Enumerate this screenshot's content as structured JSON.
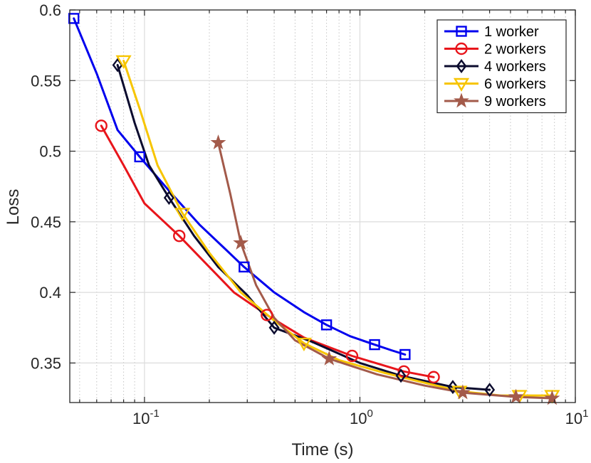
{
  "chart_data": {
    "type": "line",
    "xlabel": "Time (s)",
    "ylabel": "Loss",
    "xscale": "log",
    "xlim": [
      0.045,
      10
    ],
    "ylim": [
      0.322,
      0.6
    ],
    "xticks": [
      {
        "value": 0.1,
        "base": "10",
        "exp": "-1"
      },
      {
        "value": 1,
        "base": "10",
        "exp": "0"
      },
      {
        "value": 10,
        "base": "10",
        "exp": "1"
      }
    ],
    "yticks": [
      {
        "value": 0.35,
        "label": "0.35"
      },
      {
        "value": 0.4,
        "label": "0.4"
      },
      {
        "value": 0.45,
        "label": "0.45"
      },
      {
        "value": 0.5,
        "label": "0.5"
      },
      {
        "value": 0.55,
        "label": "0.55"
      },
      {
        "value": 0.6,
        "label": "0.6"
      }
    ],
    "grid": true,
    "legend": "top-right",
    "series": [
      {
        "name": "1 worker",
        "color": "#0000ee",
        "marker": "square",
        "curve": [
          [
            0.047,
            0.594
          ],
          [
            0.06,
            0.555
          ],
          [
            0.075,
            0.515
          ],
          [
            0.095,
            0.496
          ],
          [
            0.13,
            0.472
          ],
          [
            0.18,
            0.448
          ],
          [
            0.24,
            0.43
          ],
          [
            0.29,
            0.418
          ],
          [
            0.4,
            0.4
          ],
          [
            0.55,
            0.386
          ],
          [
            0.7,
            0.377
          ],
          [
            0.9,
            0.369
          ],
          [
            1.17,
            0.363
          ],
          [
            1.4,
            0.359
          ],
          [
            1.62,
            0.356
          ]
        ],
        "markers": [
          [
            0.047,
            0.594
          ],
          [
            0.095,
            0.496
          ],
          [
            0.29,
            0.418
          ],
          [
            0.7,
            0.377
          ],
          [
            1.17,
            0.363
          ],
          [
            1.62,
            0.356
          ]
        ]
      },
      {
        "name": "2 workers",
        "color": "#e8151b",
        "marker": "circle",
        "curve": [
          [
            0.063,
            0.518
          ],
          [
            0.08,
            0.49
          ],
          [
            0.1,
            0.463
          ],
          [
            0.145,
            0.44
          ],
          [
            0.2,
            0.418
          ],
          [
            0.26,
            0.4
          ],
          [
            0.37,
            0.384
          ],
          [
            0.55,
            0.368
          ],
          [
            0.92,
            0.355
          ],
          [
            1.6,
            0.344
          ],
          [
            2.2,
            0.34
          ]
        ],
        "markers": [
          [
            0.063,
            0.518
          ],
          [
            0.145,
            0.44
          ],
          [
            0.37,
            0.384
          ],
          [
            0.92,
            0.355
          ],
          [
            1.6,
            0.344
          ],
          [
            2.2,
            0.34
          ]
        ]
      },
      {
        "name": "4 workers",
        "color": "#0b0b2e",
        "marker": "diamond",
        "curve": [
          [
            0.075,
            0.561
          ],
          [
            0.09,
            0.52
          ],
          [
            0.105,
            0.49
          ],
          [
            0.13,
            0.467
          ],
          [
            0.17,
            0.44
          ],
          [
            0.22,
            0.418
          ],
          [
            0.3,
            0.398
          ],
          [
            0.4,
            0.375
          ],
          [
            0.6,
            0.365
          ],
          [
            1.0,
            0.35
          ],
          [
            1.55,
            0.341
          ],
          [
            2.7,
            0.333
          ],
          [
            4.0,
            0.331
          ]
        ],
        "markers": [
          [
            0.075,
            0.561
          ],
          [
            0.13,
            0.467
          ],
          [
            0.4,
            0.375
          ],
          [
            1.55,
            0.341
          ],
          [
            2.7,
            0.333
          ],
          [
            4.0,
            0.331
          ]
        ]
      },
      {
        "name": "6 workers",
        "color": "#f7c500",
        "marker": "triangle-down",
        "curve": [
          [
            0.08,
            0.564
          ],
          [
            0.095,
            0.53
          ],
          [
            0.115,
            0.49
          ],
          [
            0.15,
            0.456
          ],
          [
            0.2,
            0.428
          ],
          [
            0.28,
            0.4
          ],
          [
            0.4,
            0.38
          ],
          [
            0.55,
            0.364
          ],
          [
            0.8,
            0.352
          ],
          [
            1.3,
            0.343
          ],
          [
            2.0,
            0.336
          ],
          [
            2.9,
            0.33
          ],
          [
            4.5,
            0.327
          ],
          [
            5.5,
            0.327
          ],
          [
            7.8,
            0.327
          ]
        ],
        "markers": [
          [
            0.08,
            0.564
          ],
          [
            0.15,
            0.456
          ],
          [
            0.55,
            0.364
          ],
          [
            2.9,
            0.33
          ],
          [
            5.5,
            0.327
          ],
          [
            7.8,
            0.327
          ]
        ]
      },
      {
        "name": "9 workers",
        "color": "#a35a4a",
        "marker": "star",
        "curve": [
          [
            0.22,
            0.506
          ],
          [
            0.25,
            0.47
          ],
          [
            0.28,
            0.435
          ],
          [
            0.33,
            0.405
          ],
          [
            0.4,
            0.382
          ],
          [
            0.5,
            0.366
          ],
          [
            0.72,
            0.353
          ],
          [
            1.2,
            0.342
          ],
          [
            2.0,
            0.334
          ],
          [
            3.0,
            0.329
          ],
          [
            5.3,
            0.326
          ],
          [
            7.8,
            0.325
          ]
        ],
        "markers": [
          [
            0.22,
            0.506
          ],
          [
            0.28,
            0.435
          ],
          [
            0.72,
            0.353
          ],
          [
            3.0,
            0.329
          ],
          [
            5.3,
            0.326
          ],
          [
            7.8,
            0.325
          ]
        ]
      }
    ]
  }
}
